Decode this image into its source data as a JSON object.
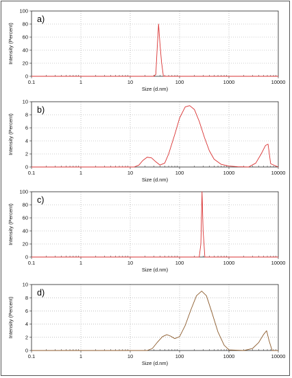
{
  "chart_data": [
    {
      "type": "line",
      "panel_label": "a)",
      "xlabel": "Size (d.nm)",
      "ylabel": "Intensity (Percent)",
      "x_scale": "log",
      "xlim": [
        0.1,
        10000
      ],
      "ylim": [
        0,
        100
      ],
      "x_ticks": [
        "0.1",
        "1",
        "10",
        "100",
        "1000",
        "10000"
      ],
      "y_ticks": [
        "0",
        "20",
        "40",
        "60",
        "80",
        "100"
      ],
      "grid": true,
      "series": [
        {
          "color": "#d93030",
          "x": [
            0.1,
            30,
            33,
            35,
            37.5,
            40,
            43,
            47,
            10000
          ],
          "y": [
            0,
            0,
            3,
            40,
            80,
            50,
            22,
            0,
            0
          ]
        }
      ]
    },
    {
      "type": "line",
      "panel_label": "b)",
      "xlabel": "Size (d.nm)",
      "ylabel": "Intensity (Percent)",
      "x_scale": "log",
      "xlim": [
        0.1,
        10000
      ],
      "ylim": [
        0,
        10
      ],
      "x_ticks": [
        "0.1",
        "1",
        "10",
        "100",
        "1000",
        "10000"
      ],
      "y_ticks": [
        "0",
        "2",
        "4",
        "6",
        "8",
        "10"
      ],
      "grid": true,
      "series": [
        {
          "color": "#d93030",
          "x": [
            0.1,
            12,
            15,
            18,
            22,
            27,
            33,
            40,
            50,
            60,
            80,
            100,
            130,
            160,
            200,
            250,
            320,
            400,
            500,
            700,
            1000,
            1500,
            2500,
            3500,
            4500,
            5500,
            6200,
            7000,
            10000
          ],
          "y": [
            0,
            0,
            0.3,
            1.0,
            1.5,
            1.4,
            0.8,
            0.3,
            0.6,
            2.0,
            5.0,
            7.5,
            9.2,
            9.4,
            8.8,
            7.0,
            4.5,
            2.5,
            1.2,
            0.4,
            0.15,
            0.05,
            0.0,
            0.6,
            2.0,
            3.3,
            3.5,
            0.5,
            0
          ]
        }
      ]
    },
    {
      "type": "line",
      "panel_label": "c)",
      "xlabel": "Size (d.nm)",
      "ylabel": "Intensity (Percent)",
      "x_scale": "log",
      "xlim": [
        0.1,
        10000
      ],
      "ylim": [
        0,
        100
      ],
      "x_ticks": [
        "0.1",
        "1",
        "10",
        "100",
        "1000",
        "10000"
      ],
      "y_ticks": [
        "0",
        "20",
        "40",
        "60",
        "80",
        "100"
      ],
      "grid": true,
      "series": [
        {
          "color": "#d93030",
          "x": [
            0.1,
            250,
            270,
            285,
            300,
            325,
            10000
          ],
          "y": [
            0,
            0,
            20,
            100,
            40,
            0,
            0
          ]
        }
      ]
    },
    {
      "type": "line",
      "panel_label": "d)",
      "xlabel": "Size (d.nm)",
      "ylabel": "Intensity (Percent)",
      "x_scale": "log",
      "xlim": [
        0.1,
        10000
      ],
      "ylim": [
        0,
        10
      ],
      "x_ticks": [
        "0.1",
        "1",
        "10",
        "100",
        "1000",
        "10000"
      ],
      "y_ticks": [
        "0",
        "2",
        "4",
        "6",
        "8",
        "10"
      ],
      "grid": true,
      "series": [
        {
          "color": "#8b5a2b",
          "x": [
            0.1,
            22,
            28,
            35,
            45,
            55,
            65,
            80,
            100,
            130,
            170,
            220,
            280,
            350,
            450,
            600,
            800,
            1000,
            2000,
            3000,
            4000,
            5000,
            5800,
            6500,
            7500,
            10000
          ],
          "y": [
            0,
            0,
            0.3,
            1.2,
            2.1,
            2.4,
            2.2,
            1.8,
            2.1,
            3.8,
            6.2,
            8.3,
            9.0,
            8.3,
            5.8,
            2.8,
            0.8,
            0.1,
            0.0,
            0.3,
            1.2,
            2.4,
            3.0,
            1.5,
            0,
            0
          ]
        }
      ]
    }
  ]
}
